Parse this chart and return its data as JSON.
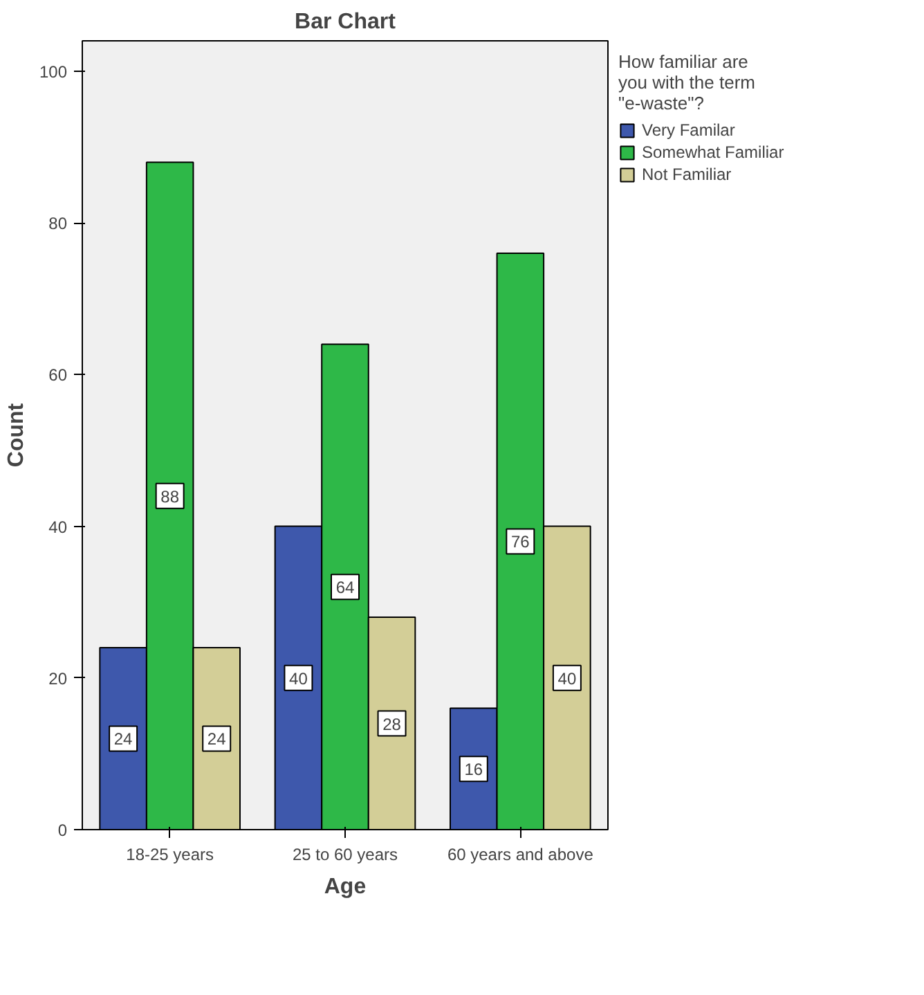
{
  "chart_data": {
    "type": "bar",
    "title": "Bar Chart",
    "xlabel": "Age",
    "ylabel": "Count",
    "legend_title": "How familiar are you with the term \"e-waste\"?",
    "categories": [
      "18-25 years",
      "25 to 60 years",
      "60 years and above"
    ],
    "series": [
      {
        "name": "Very Familar",
        "color": "#3e58ac",
        "values": [
          24,
          40,
          16
        ]
      },
      {
        "name": "Somewhat Familiar",
        "color": "#2eb848",
        "values": [
          88,
          64,
          76
        ]
      },
      {
        "name": "Not Familiar",
        "color": "#d3ce97",
        "values": [
          24,
          28,
          40
        ]
      }
    ],
    "ylim": [
      0,
      104
    ],
    "yticks": [
      0,
      20,
      40,
      60,
      80,
      100
    ],
    "legend": "top right",
    "data_labels": true
  }
}
